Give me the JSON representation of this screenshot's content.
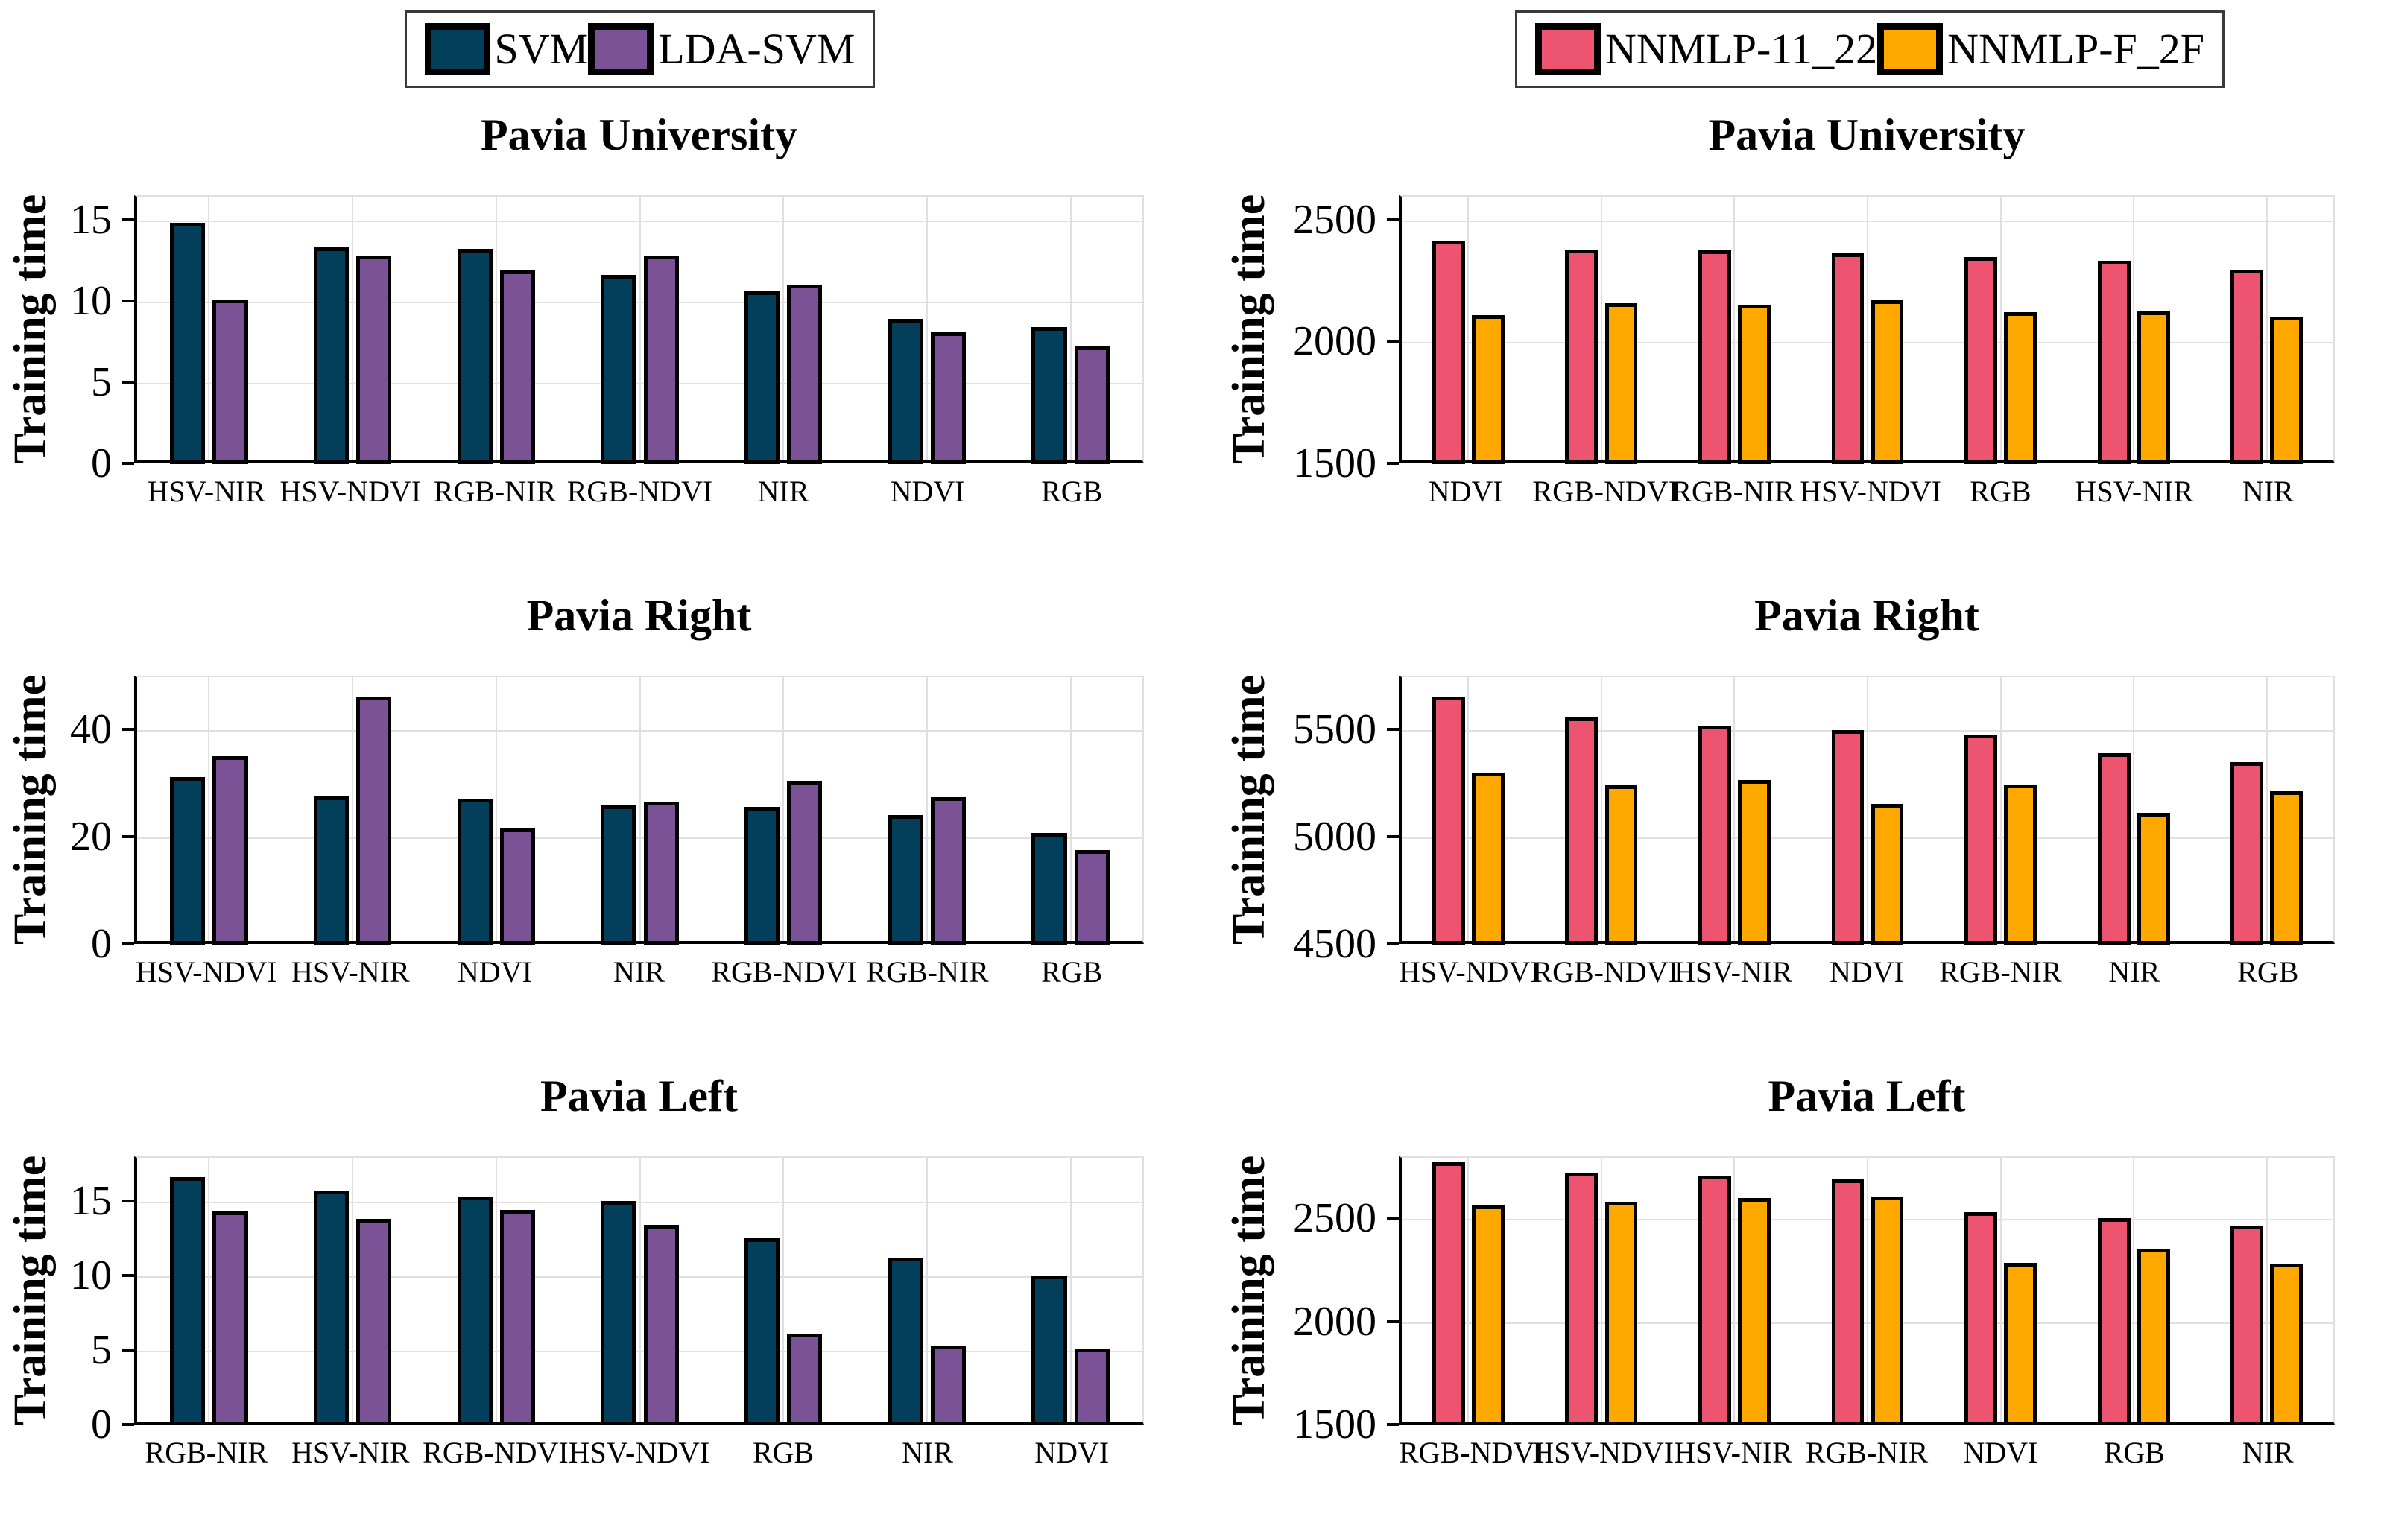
{
  "figure": {
    "background": "#ffffff",
    "axis_color": "#000000",
    "grid_color": "#e0e0e0",
    "ylabel_text": "Training time"
  },
  "legends": [
    {
      "applies_to": "left-column-charts",
      "entries": [
        {
          "label": "SVM",
          "color": "#033F5B"
        },
        {
          "label": "LDA-SVM",
          "color": "#7A5295"
        }
      ]
    },
    {
      "applies_to": "right-column-charts",
      "entries": [
        {
          "label": "NNMLP-11_22",
          "color": "#ED5470"
        },
        {
          "label": "NNMLP-F_2F",
          "color": "#FFA800"
        }
      ]
    }
  ],
  "chart_data": [
    {
      "type": "bar",
      "title": "Pavia University",
      "ylabel": "Training time",
      "column": "left",
      "categories": [
        "HSV-NIR",
        "HSV-NDVI",
        "RGB-NIR",
        "RGB-NDVI",
        "NIR",
        "NDVI",
        "RGB"
      ],
      "series": [
        {
          "name": "SVM",
          "color": "#033F5B",
          "values": [
            14.6,
            13.1,
            13.0,
            11.4,
            10.4,
            8.7,
            8.2
          ]
        },
        {
          "name": "LDA-SVM",
          "color": "#7A5295",
          "values": [
            9.9,
            12.6,
            11.7,
            12.6,
            10.8,
            7.9,
            7.0
          ]
        }
      ],
      "ylim": [
        0,
        16.5
      ],
      "yticks": [
        0,
        5,
        10,
        15
      ],
      "grid": true,
      "legend_position": "above-plot"
    },
    {
      "type": "bar",
      "title": "Pavia University",
      "ylabel": "Training time",
      "column": "right",
      "categories": [
        "NDVI",
        "RGB-NDVI",
        "RGB-NIR",
        "HSV-NDVI",
        "RGB",
        "HSV-NIR",
        "NIR"
      ],
      "series": [
        {
          "name": "NNMLP-11_22",
          "color": "#ED5470",
          "values": [
            2400,
            2365,
            2362,
            2348,
            2333,
            2318,
            2283
          ]
        },
        {
          "name": "NNMLP-F_2F",
          "color": "#FFA800",
          "values": [
            2095,
            2145,
            2138,
            2158,
            2108,
            2112,
            2090
          ]
        }
      ],
      "ylim": [
        1500,
        2600
      ],
      "yticks": [
        1500,
        2000,
        2500
      ],
      "grid": true,
      "legend_position": "above-plot"
    },
    {
      "type": "bar",
      "title": "Pavia Right",
      "ylabel": "Training time",
      "column": "left",
      "categories": [
        "HSV-NDVI",
        "HSV-NIR",
        "NDVI",
        "NIR",
        "RGB-NDVI",
        "RGB-NIR",
        "RGB"
      ],
      "series": [
        {
          "name": "SVM",
          "color": "#033F5B",
          "values": [
            30.5,
            27.0,
            26.5,
            25.3,
            25.0,
            23.5,
            20.2
          ]
        },
        {
          "name": "LDA-SVM",
          "color": "#7A5295",
          "values": [
            34.4,
            45.5,
            21.0,
            26.0,
            29.8,
            26.8,
            17.0
          ]
        }
      ],
      "ylim": [
        0,
        50
      ],
      "yticks": [
        0,
        20,
        40
      ],
      "grid": true,
      "legend_position": "none"
    },
    {
      "type": "bar",
      "title": "Pavia Right",
      "ylabel": "Training time",
      "column": "right",
      "categories": [
        "HSV-NDVI",
        "RGB-NDVI",
        "HSV-NIR",
        "NDVI",
        "RGB-NIR",
        "NIR",
        "RGB"
      ],
      "series": [
        {
          "name": "NNMLP-11_22",
          "color": "#ED5470",
          "values": [
            5640,
            5540,
            5502,
            5483,
            5462,
            5375,
            5333
          ]
        },
        {
          "name": "NNMLP-F_2F",
          "color": "#FFA800",
          "values": [
            5285,
            5225,
            5250,
            5138,
            5228,
            5098,
            5198
          ]
        }
      ],
      "ylim": [
        4500,
        5750
      ],
      "yticks": [
        4500,
        5000,
        5500
      ],
      "grid": true,
      "legend_position": "none"
    },
    {
      "type": "bar",
      "title": "Pavia Left",
      "ylabel": "Training time",
      "column": "left",
      "categories": [
        "RGB-NIR",
        "HSV-NIR",
        "RGB-NDVI",
        "HSV-NDVI",
        "RGB",
        "NIR",
        "NDVI"
      ],
      "series": [
        {
          "name": "SVM",
          "color": "#033F5B",
          "values": [
            16.4,
            15.5,
            15.1,
            14.8,
            12.3,
            11.0,
            9.8
          ]
        },
        {
          "name": "LDA-SVM",
          "color": "#7A5295",
          "values": [
            14.1,
            13.6,
            14.2,
            13.2,
            5.9,
            5.1,
            4.9
          ]
        }
      ],
      "ylim": [
        0,
        18
      ],
      "yticks": [
        0,
        5,
        10,
        15
      ],
      "grid": true,
      "legend_position": "none"
    },
    {
      "type": "bar",
      "title": "Pavia Left",
      "ylabel": "Training time",
      "column": "right",
      "categories": [
        "RGB-NDVI",
        "HSV-NDVI",
        "HSV-NIR",
        "RGB-NIR",
        "NDVI",
        "RGB",
        "NIR"
      ],
      "series": [
        {
          "name": "NNMLP-11_22",
          "color": "#ED5470",
          "values": [
            2758,
            2707,
            2690,
            2672,
            2513,
            2487,
            2450
          ]
        },
        {
          "name": "NNMLP-F_2F",
          "color": "#FFA800",
          "values": [
            2549,
            2567,
            2583,
            2590,
            2270,
            2337,
            2265
          ]
        }
      ],
      "ylim": [
        1500,
        2800
      ],
      "yticks": [
        1500,
        2000,
        2500
      ],
      "grid": true,
      "legend_position": "none"
    }
  ]
}
